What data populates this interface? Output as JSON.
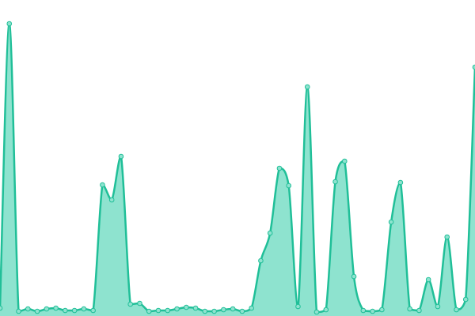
{
  "chart_data": {
    "type": "area",
    "values": [
      10,
      370,
      6,
      9,
      6,
      9,
      10,
      7,
      7,
      9,
      7,
      166,
      147,
      202,
      15,
      16,
      6,
      7,
      7,
      9,
      11,
      10,
      6,
      6,
      8,
      9,
      6,
      10,
      70,
      105,
      187,
      165,
      12,
      290,
      5,
      8,
      170,
      196,
      50,
      7,
      6,
      8,
      119,
      169,
      9,
      7,
      46,
      12,
      100,
      8,
      21,
      315
    ],
    "color": "#20bf98",
    "fill": "#8ee3cf",
    "ylim": [
      0,
      400
    ]
  }
}
